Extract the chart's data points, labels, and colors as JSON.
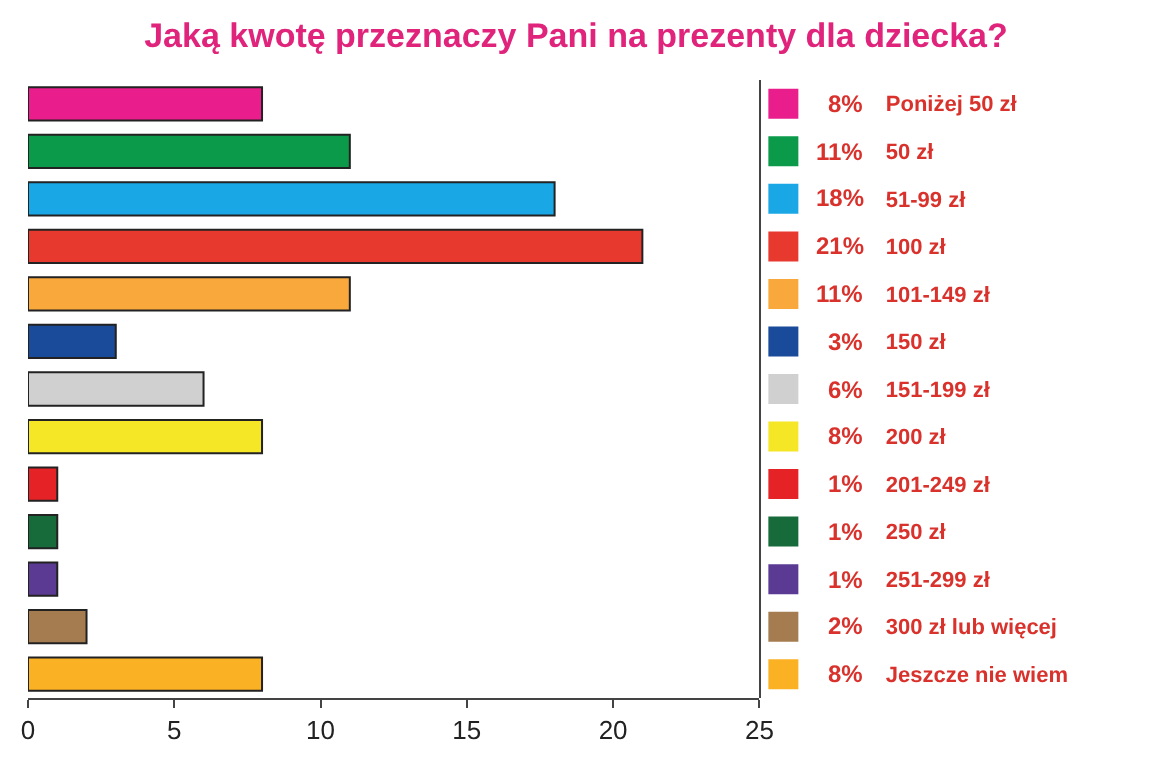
{
  "chart_data": {
    "type": "bar",
    "orientation": "horizontal",
    "title": "Jaką kwotę przeznaczy Pani na prezenty dla dziecka?",
    "categories": [
      "Poniżej 50 zł",
      "50 zł",
      "51-99 zł",
      "100 zł",
      "101-149 zł",
      "150 zł",
      "151-199 zł",
      "200 zł",
      "201-249 zł",
      "250 zł",
      "251-299 zł",
      "300 zł lub więcej",
      "Jeszcze nie wiem"
    ],
    "values": [
      8,
      11,
      18,
      21,
      11,
      3,
      6,
      8,
      1,
      1,
      1,
      2,
      8
    ],
    "value_labels": [
      "8%",
      "11%",
      "18%",
      "21%",
      "11%",
      "3%",
      "6%",
      "8%",
      "1%",
      "1%",
      "1%",
      "2%",
      "8%"
    ],
    "colors": [
      "#e91e8c",
      "#0a9a4a",
      "#1aa7e6",
      "#e8392f",
      "#f9a93b",
      "#1a4a9a",
      "#d0d0d0",
      "#f5e626",
      "#e52326",
      "#176b3a",
      "#5b3a93",
      "#a57c4f",
      "#fbb124"
    ],
    "xlim": [
      0,
      25
    ],
    "xticks": [
      0,
      5,
      10,
      15,
      20,
      25
    ]
  }
}
